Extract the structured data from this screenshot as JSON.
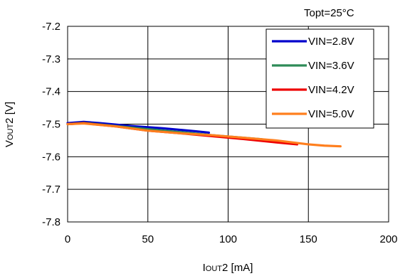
{
  "chart_data": {
    "type": "line",
    "annotation": "Topt=25°C",
    "xlabel": {
      "main": "I",
      "sub": "OUT",
      "tail": "2 [mA]"
    },
    "ylabel": {
      "main": "V",
      "sub": "OUT",
      "tail": "2 [V]"
    },
    "xlim": [
      0,
      200
    ],
    "ylim": [
      -7.8,
      -7.2
    ],
    "x_ticks": [
      0,
      50,
      100,
      150,
      200
    ],
    "y_ticks": [
      -7.2,
      -7.3,
      -7.4,
      -7.5,
      -7.6,
      -7.7,
      -7.8
    ],
    "grid": true,
    "legend_position": "top-right",
    "series": [
      {
        "name": "VIN=2.8V",
        "color": "#0000cc",
        "x": [
          0,
          10,
          20,
          40,
          60,
          80,
          88
        ],
        "y": [
          -7.497,
          -7.493,
          -7.497,
          -7.506,
          -7.513,
          -7.522,
          -7.526
        ]
      },
      {
        "name": "VIN=3.6V",
        "color": "#2e8b57",
        "x": [
          0,
          10,
          30,
          60,
          90,
          120,
          142
        ],
        "y": [
          -7.5,
          -7.496,
          -7.506,
          -7.52,
          -7.534,
          -7.546,
          -7.56
        ]
      },
      {
        "name": "VIN=4.2V",
        "color": "#ee0000",
        "x": [
          0,
          10,
          30,
          50,
          70,
          90,
          110,
          130,
          143
        ],
        "y": [
          -7.5,
          -7.497,
          -7.507,
          -7.52,
          -7.528,
          -7.537,
          -7.546,
          -7.556,
          -7.562
        ]
      },
      {
        "name": "VIN=5.0V",
        "color": "#ff7f1e",
        "x": [
          0,
          10,
          30,
          50,
          70,
          90,
          110,
          130,
          150,
          160,
          170
        ],
        "y": [
          -7.5,
          -7.498,
          -7.507,
          -7.52,
          -7.528,
          -7.534,
          -7.542,
          -7.55,
          -7.562,
          -7.566,
          -7.568
        ]
      }
    ]
  }
}
